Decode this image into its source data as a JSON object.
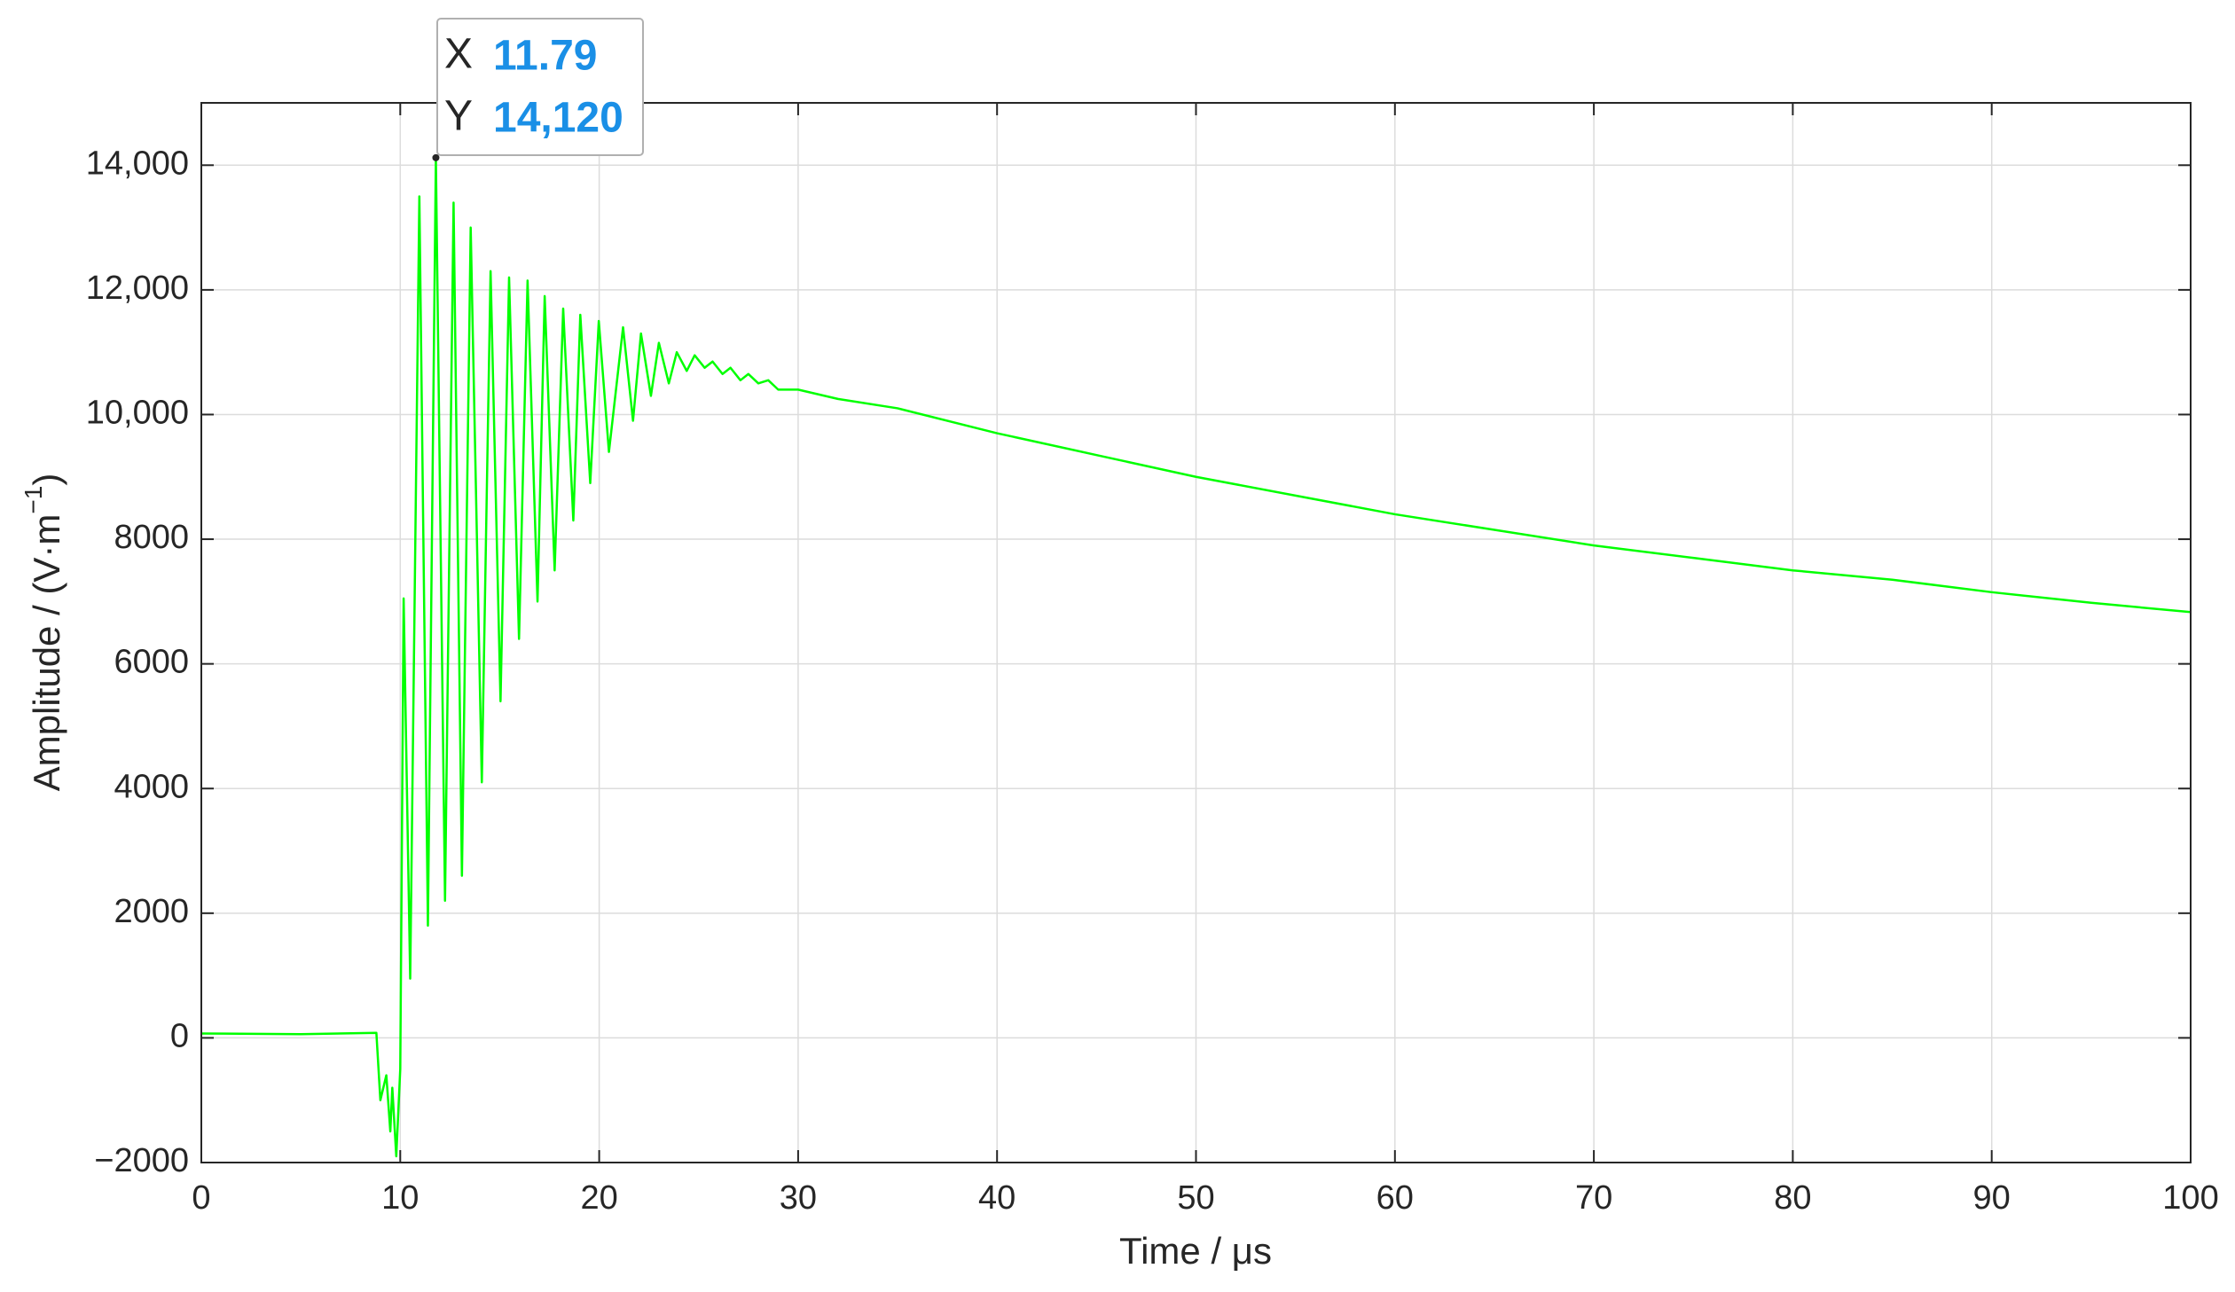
{
  "chart_data": {
    "type": "line",
    "x_label": "Time / μs",
    "y_label": {
      "text": "Amplitude / (V·m",
      "superscript": "−1",
      "suffix": ")"
    },
    "x": [
      0,
      5,
      8.8,
      9.0,
      9.3,
      9.5,
      9.6,
      9.8,
      10.0,
      10.17,
      10.5,
      10.96,
      11.39,
      11.79,
      12.25,
      12.68,
      13.1,
      13.54,
      14.1,
      14.54,
      15.04,
      15.47,
      15.97,
      16.4,
      16.9,
      17.26,
      17.76,
      18.19,
      18.7,
      19.05,
      19.55,
      19.98,
      20.49,
      21.2,
      21.7,
      22.1,
      22.6,
      23.0,
      23.5,
      23.9,
      24.4,
      24.8,
      25.3,
      25.7,
      26.2,
      26.6,
      27.1,
      27.5,
      28,
      28.5,
      29,
      30,
      32,
      35,
      40,
      45,
      50,
      55,
      60,
      65,
      70,
      75,
      80,
      85,
      90,
      95,
      100
    ],
    "series": [
      {
        "color": "#00ff00",
        "values": [
          70,
          60,
          80,
          -1000,
          -600,
          -1500,
          -800,
          -1900,
          -500,
          7050,
          950,
          13500,
          1800,
          14120,
          2200,
          13400,
          2600,
          13000,
          4100,
          12300,
          5400,
          12200,
          6400,
          12150,
          7000,
          11900,
          7500,
          11700,
          8300,
          11600,
          8900,
          11500,
          9400,
          11400,
          9900,
          11300,
          10300,
          11150,
          10500,
          11000,
          10700,
          10950,
          10750,
          10850,
          10650,
          10750,
          10550,
          10650,
          10500,
          10550,
          10400,
          10400,
          10250,
          10100,
          9700,
          9350,
          9000,
          8700,
          8400,
          8150,
          7900,
          7700,
          7500,
          7350,
          7150,
          6980,
          6830
        ]
      }
    ],
    "xlim": [
      0,
      100
    ],
    "xticks": [
      0,
      10,
      20,
      30,
      40,
      50,
      60,
      70,
      80,
      90,
      100
    ],
    "ylim": [
      -2000,
      15000
    ],
    "yticks": [
      {
        "value": -2000,
        "label": "−2000"
      },
      0,
      2000,
      4000,
      6000,
      8000,
      {
        "value": 10000,
        "label": "10,000"
      },
      {
        "value": 12000,
        "label": "12,000"
      },
      {
        "value": 14000,
        "label": "14,000"
      }
    ],
    "grid": true,
    "datatip": {
      "x_label": "X",
      "x": 11.79,
      "y_label": "Y",
      "y": {
        "value": 14120,
        "label": "14,120"
      }
    }
  }
}
